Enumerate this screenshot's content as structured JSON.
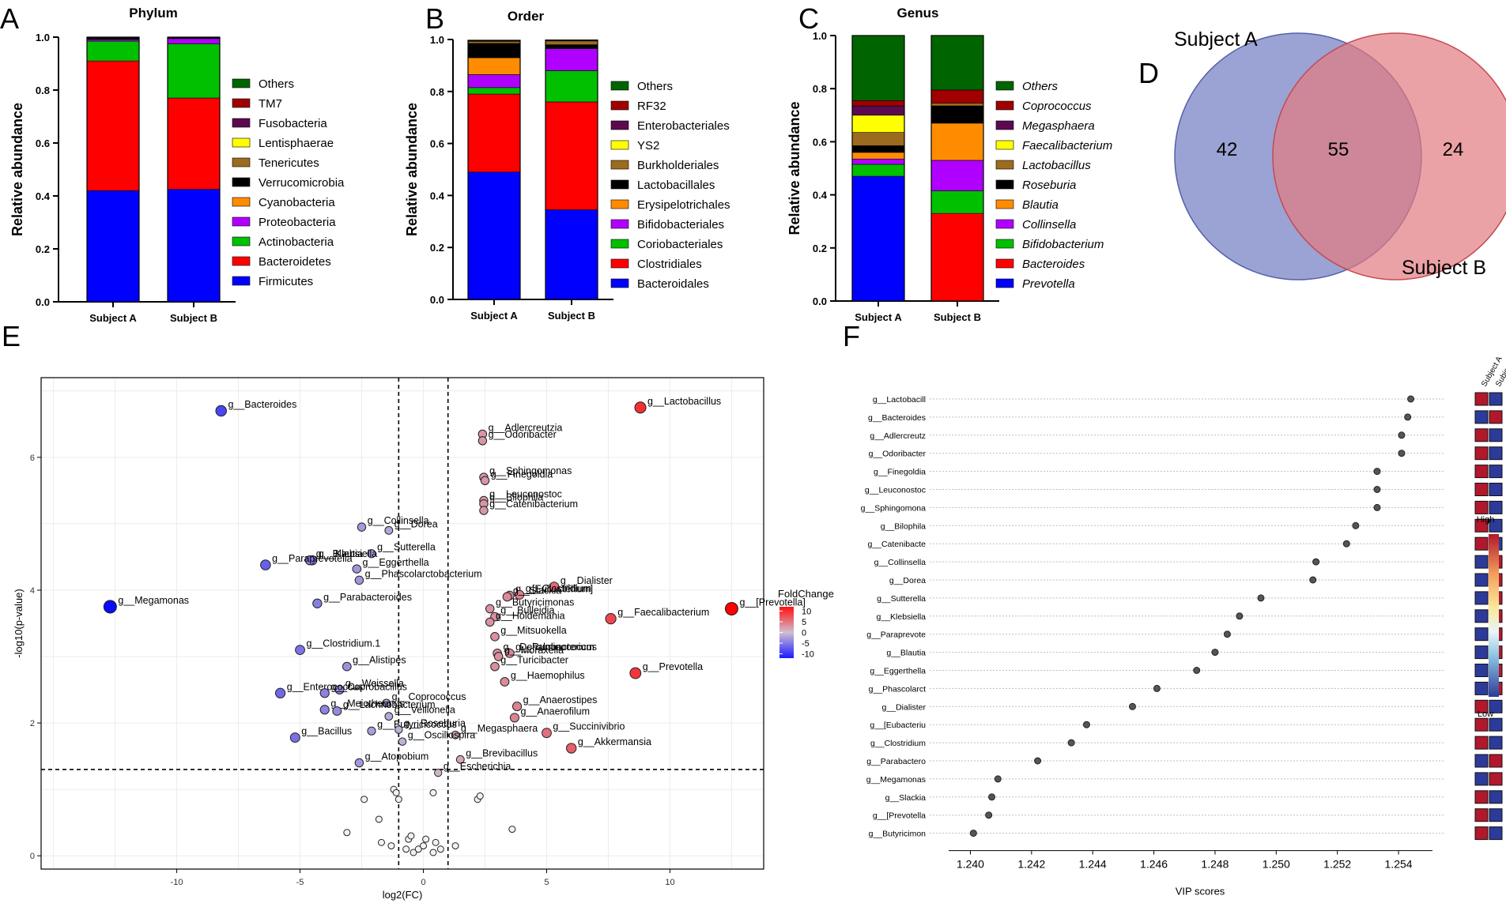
{
  "chart_data": [
    {
      "panel": "A",
      "type": "stacked-bar",
      "title": "Phylum",
      "ylabel": "Relative abundance",
      "ylim": [
        0,
        1.0
      ],
      "yticks": [
        "0.0",
        "0.2",
        "0.4",
        "0.6",
        "0.8",
        "1.0"
      ],
      "categories": [
        "Subject A",
        "Subject B"
      ],
      "series": [
        {
          "name": "Firmicutes",
          "color": "#0000ff",
          "values": [
            0.42,
            0.425
          ]
        },
        {
          "name": "Bacteroidetes",
          "color": "#ff0000",
          "values": [
            0.49,
            0.345
          ]
        },
        {
          "name": "Actinobacteria",
          "color": "#00c000",
          "values": [
            0.075,
            0.205
          ]
        },
        {
          "name": "Proteobacteria",
          "color": "#b000ff",
          "values": [
            0.006,
            0.02
          ]
        },
        {
          "name": "Cyanobacteria",
          "color": "#ff8c00",
          "values": [
            0.002,
            0.001
          ]
        },
        {
          "name": "Verrucomicrobia",
          "color": "#000000",
          "values": [
            0.002,
            0.001
          ]
        },
        {
          "name": "Tenericutes",
          "color": "#9c6b1e",
          "values": [
            0.002,
            0.001
          ]
        },
        {
          "name": "Lentisphaerae",
          "color": "#ffff00",
          "values": [
            0.001,
            0.001
          ]
        },
        {
          "name": "Fusobacteria",
          "color": "#5c0a50",
          "values": [
            0.001,
            0.001
          ]
        },
        {
          "name": "TM7",
          "color": "#a00000",
          "values": [
            0.001,
            0.0
          ]
        },
        {
          "name": "Others",
          "color": "#006400",
          "values": [
            0.0,
            0.0
          ]
        }
      ]
    },
    {
      "panel": "B",
      "type": "stacked-bar",
      "title": "Order",
      "ylabel": "Relative abundance",
      "ylim": [
        0,
        1.0
      ],
      "yticks": [
        "0.0",
        "0.2",
        "0.4",
        "0.6",
        "0.8",
        "1.0"
      ],
      "categories": [
        "Subject A",
        "Subject B"
      ],
      "series": [
        {
          "name": "Bacteroidales",
          "color": "#0000ff",
          "values": [
            0.49,
            0.345
          ]
        },
        {
          "name": "Clostridiales",
          "color": "#ff0000",
          "values": [
            0.3,
            0.415
          ]
        },
        {
          "name": "Coriobacteriales",
          "color": "#00c000",
          "values": [
            0.025,
            0.12
          ]
        },
        {
          "name": "Bifidobacteriales",
          "color": "#b000ff",
          "values": [
            0.05,
            0.085
          ]
        },
        {
          "name": "Erysipelotrichales",
          "color": "#ff8c00",
          "values": [
            0.065,
            0.0
          ]
        },
        {
          "name": "Lactobacillales",
          "color": "#000000",
          "values": [
            0.055,
            0.015
          ]
        },
        {
          "name": "Burkholderiales",
          "color": "#9c6b1e",
          "values": [
            0.008,
            0.015
          ]
        },
        {
          "name": "YS2",
          "color": "#ffff00",
          "values": [
            0.002,
            0.001
          ]
        },
        {
          "name": "Enterobacteriales",
          "color": "#5c0a50",
          "values": [
            0.001,
            0.001
          ]
        },
        {
          "name": "RF32",
          "color": "#a00000",
          "values": [
            0.001,
            0.001
          ]
        },
        {
          "name": "Others",
          "color": "#006400",
          "values": [
            0.0,
            0.0
          ]
        }
      ]
    },
    {
      "panel": "C",
      "type": "stacked-bar",
      "title": "Genus",
      "ylabel": "Relative abundance",
      "ylim": [
        0,
        1.0
      ],
      "yticks": [
        "0.0",
        "0.2",
        "0.4",
        "0.6",
        "0.8",
        "1.0"
      ],
      "categories": [
        "Subject A",
        "Subject B"
      ],
      "italic_legend": true,
      "series": [
        {
          "name": "Prevotella",
          "color": "#0000ff",
          "values": [
            0.47,
            0.0
          ]
        },
        {
          "name": "Bacteroides",
          "color": "#ff0000",
          "values": [
            0.0,
            0.33
          ]
        },
        {
          "name": "Bifidobacterium",
          "color": "#00c000",
          "values": [
            0.045,
            0.085
          ]
        },
        {
          "name": "Collinsella",
          "color": "#b000ff",
          "values": [
            0.02,
            0.115
          ]
        },
        {
          "name": "Blautia",
          "color": "#ff8c00",
          "values": [
            0.025,
            0.14
          ]
        },
        {
          "name": "Roseburia",
          "color": "#000000",
          "values": [
            0.025,
            0.065
          ]
        },
        {
          "name": "Lactobacillus",
          "color": "#9c6b1e",
          "values": [
            0.05,
            0.01
          ]
        },
        {
          "name": "Faecalibacterium",
          "color": "#ffff00",
          "values": [
            0.065,
            0.0
          ]
        },
        {
          "name": "Megasphaera",
          "color": "#5c0a50",
          "values": [
            0.035,
            0.0
          ]
        },
        {
          "name": "Coprococcus",
          "color": "#a00000",
          "values": [
            0.02,
            0.05
          ]
        },
        {
          "name": "Others",
          "color": "#006400",
          "values": [
            0.245,
            0.205
          ]
        }
      ]
    },
    {
      "panel": "D",
      "type": "venn",
      "sets": [
        {
          "name": "Subject A",
          "only": 42,
          "color": "#8a93cc"
        },
        {
          "name": "Subject B",
          "only": 24,
          "color": "#e27b80"
        }
      ],
      "overlap": 55
    },
    {
      "panel": "E",
      "type": "scatter",
      "xlabel": "log2(FC)",
      "ylabel": "-log10(p-value)",
      "xlim": [
        -15.5,
        13.8
      ],
      "ylim": [
        -0.2,
        7.2
      ],
      "xticks": [
        -10,
        -5,
        0,
        5,
        10
      ],
      "yticks": [
        0,
        2,
        4,
        6
      ],
      "vlines": [
        -1,
        1
      ],
      "hline": 1.3,
      "legend": {
        "title": "FoldChange",
        "ticks": [
          "10",
          "5",
          "0",
          "-5",
          "-10"
        ],
        "range": [
          -12,
          12
        ]
      },
      "points": [
        {
          "label": "g__Lactobacillus",
          "x": 8.8,
          "y": 6.75,
          "fc": 9
        },
        {
          "label": "g__Bacteroides",
          "x": -8.2,
          "y": 6.7,
          "fc": -8
        },
        {
          "label": "g__Adlercreutzia",
          "x": 2.4,
          "y": 6.35,
          "fc": 2.5
        },
        {
          "label": "g__Odoribacter",
          "x": 2.4,
          "y": 6.25,
          "fc": 2.5
        },
        {
          "label": "g__Sphingomonas",
          "x": 2.45,
          "y": 5.7,
          "fc": 2.5
        },
        {
          "label": "g__Finegoldia",
          "x": 2.5,
          "y": 5.65,
          "fc": 2.6
        },
        {
          "label": "g__Leuconostoc",
          "x": 2.45,
          "y": 5.35,
          "fc": 2.5
        },
        {
          "label": "g__Bilophila",
          "x": 2.45,
          "y": 5.3,
          "fc": 2.5
        },
        {
          "label": "g__Catenibacterium",
          "x": 2.45,
          "y": 5.2,
          "fc": 2.5
        },
        {
          "label": "g__Collinsella",
          "x": -2.5,
          "y": 4.95,
          "fc": -2.5
        },
        {
          "label": "g__Dorea",
          "x": -1.4,
          "y": 4.9,
          "fc": -1.5
        },
        {
          "label": "g__Sutterella",
          "x": -2.1,
          "y": 4.55,
          "fc": -2.2
        },
        {
          "label": "g__Klebsiella",
          "x": -4.5,
          "y": 4.45,
          "fc": -4.5
        },
        {
          "label": "g__Blautia",
          "x": -4.6,
          "y": 4.45,
          "fc": -4.5
        },
        {
          "label": "g__Paraprevotella",
          "x": -6.4,
          "y": 4.38,
          "fc": -6.3
        },
        {
          "label": "g__Eggerthella",
          "x": -2.7,
          "y": 4.32,
          "fc": -2.7
        },
        {
          "label": "g__Phascolarctobacterium",
          "x": -2.6,
          "y": 4.15,
          "fc": -2.6
        },
        {
          "label": "g__[Eubacterium]",
          "x": 3.5,
          "y": 3.92,
          "fc": 3.5
        },
        {
          "label": "g__Dialister",
          "x": 5.3,
          "y": 4.05,
          "fc": 5.3
        },
        {
          "label": "g__Clostridium",
          "x": 3.9,
          "y": 3.93,
          "fc": 3.9
        },
        {
          "label": "g__Slackia",
          "x": 3.4,
          "y": 3.9,
          "fc": 3.4
        },
        {
          "label": "g__[Prevotella]",
          "x": 12.5,
          "y": 3.72,
          "fc": 12.5
        },
        {
          "label": "g__Megamonas",
          "x": -12.7,
          "y": 3.75,
          "fc": -12.7
        },
        {
          "label": "g__Parabacteroides",
          "x": -4.3,
          "y": 3.8,
          "fc": -4.3
        },
        {
          "label": "g__Butyricimonas",
          "x": 2.7,
          "y": 3.72,
          "fc": 2.7
        },
        {
          "label": "g__Bulleidia",
          "x": 2.9,
          "y": 3.6,
          "fc": 2.9
        },
        {
          "label": "g__Faecalibacterium",
          "x": 7.6,
          "y": 3.57,
          "fc": 7.6
        },
        {
          "label": "g__Holdemania",
          "x": 2.7,
          "y": 3.52,
          "fc": 2.7
        },
        {
          "label": "g__Mitsuokella",
          "x": 2.9,
          "y": 3.3,
          "fc": 2.9
        },
        {
          "label": "g__Clostridium.1",
          "x": -5.0,
          "y": 3.1,
          "fc": -5.0
        },
        {
          "label": "g__Dehalobacterium",
          "x": 3.0,
          "y": 3.05,
          "fc": 3.0
        },
        {
          "label": "g__Ruminococcus",
          "x": 3.5,
          "y": 3.05,
          "fc": 3.5
        },
        {
          "label": "g__Moraxella",
          "x": 3.05,
          "y": 3.0,
          "fc": 3.05
        },
        {
          "label": "g__Turicibacter",
          "x": 2.9,
          "y": 2.85,
          "fc": 2.9
        },
        {
          "label": "g__Alistipes",
          "x": -3.1,
          "y": 2.85,
          "fc": -3.1
        },
        {
          "label": "g__Prevotella",
          "x": 8.6,
          "y": 2.75,
          "fc": 8.6
        },
        {
          "label": "g__Haemophilus",
          "x": 3.3,
          "y": 2.62,
          "fc": 3.3
        },
        {
          "label": "g__Weissella",
          "x": -3.4,
          "y": 2.5,
          "fc": -3.4
        },
        {
          "label": "g__Enterococcus",
          "x": -5.8,
          "y": 2.45,
          "fc": -5.8
        },
        {
          "label": "g__Coprobacillus",
          "x": -4.0,
          "y": 2.45,
          "fc": -4.0
        },
        {
          "label": "g__Coprococcus",
          "x": -1.5,
          "y": 2.3,
          "fc": -1.5
        },
        {
          "label": "g__Anaerostipes",
          "x": 3.8,
          "y": 2.25,
          "fc": 3.8
        },
        {
          "label": "g__Meiothermus",
          "x": -4.0,
          "y": 2.2,
          "fc": -4.0
        },
        {
          "label": "g__Lachnobacterium",
          "x": -3.5,
          "y": 2.18,
          "fc": -3.5
        },
        {
          "label": "g__Veillonella",
          "x": -1.4,
          "y": 2.1,
          "fc": -1.4
        },
        {
          "label": "g__Anaerofilum",
          "x": 3.7,
          "y": 2.08,
          "fc": 3.7
        },
        {
          "label": "g__Butyricicoccus",
          "x": -2.1,
          "y": 1.88,
          "fc": -2.1
        },
        {
          "label": "g__Roseburia",
          "x": -1.0,
          "y": 1.9,
          "fc": -1.0
        },
        {
          "label": "g__Succinivibrio",
          "x": 5.0,
          "y": 1.85,
          "fc": 5.0
        },
        {
          "label": "g__Megasphaera",
          "x": 1.3,
          "y": 1.82,
          "fc": 1.3
        },
        {
          "label": "g__Bacillus",
          "x": -5.2,
          "y": 1.78,
          "fc": -5.2
        },
        {
          "label": "g__Oscillospira",
          "x": -0.85,
          "y": 1.72,
          "fc": -0.85
        },
        {
          "label": "g__Akkermansia",
          "x": 6.0,
          "y": 1.62,
          "fc": 6.0
        },
        {
          "label": "g__Brevibacillus",
          "x": 1.5,
          "y": 1.45,
          "fc": 1.5
        },
        {
          "label": "g__Atopobium",
          "x": -2.6,
          "y": 1.4,
          "fc": -2.6
        },
        {
          "label": "g__Escherichia",
          "x": 0.6,
          "y": 1.25,
          "fc": 0.6
        }
      ],
      "ns_points": [
        {
          "x": -2.4,
          "y": 0.85
        },
        {
          "x": -1.2,
          "y": 1.0
        },
        {
          "x": -1.1,
          "y": 0.95
        },
        {
          "x": -1.0,
          "y": 0.85
        },
        {
          "x": 0.4,
          "y": 0.95
        },
        {
          "x": 2.2,
          "y": 0.85
        },
        {
          "x": 2.3,
          "y": 0.9
        },
        {
          "x": -3.1,
          "y": 0.35
        },
        {
          "x": -1.8,
          "y": 0.55
        },
        {
          "x": -1.7,
          "y": 0.2
        },
        {
          "x": -1.3,
          "y": 0.15
        },
        {
          "x": -0.6,
          "y": 0.25
        },
        {
          "x": -0.5,
          "y": 0.3
        },
        {
          "x": -0.4,
          "y": 0.05
        },
        {
          "x": -0.2,
          "y": 0.1
        },
        {
          "x": 0.0,
          "y": 0.15
        },
        {
          "x": 0.4,
          "y": 0.05
        },
        {
          "x": 0.5,
          "y": 0.2
        },
        {
          "x": 0.7,
          "y": 0.1
        },
        {
          "x": 1.3,
          "y": 0.15
        },
        {
          "x": 3.6,
          "y": 0.4
        },
        {
          "x": -0.7,
          "y": 0.1
        },
        {
          "x": 0.1,
          "y": 0.25
        }
      ]
    },
    {
      "panel": "F",
      "type": "dot-plot",
      "xlabel": "VIP scores",
      "xlim": [
        1.2396,
        1.2548
      ],
      "xticks": [
        "1.240",
        "1.242",
        "1.244",
        "1.246",
        "1.248",
        "1.250",
        "1.252",
        "1.254"
      ],
      "heat_columns": [
        "Subject A",
        "Subject B"
      ],
      "heat_legend": {
        "high": "High",
        "low": "Low"
      },
      "rows": [
        {
          "label": "g__Lactobacill",
          "vip": 1.2544,
          "a": "high"
        },
        {
          "label": "g__Bacteroides",
          "vip": 1.2543,
          "a": "low"
        },
        {
          "label": "g__Adlercreutz",
          "vip": 1.2541,
          "a": "high"
        },
        {
          "label": "g__Odoribacter",
          "vip": 1.2541,
          "a": "high"
        },
        {
          "label": "g__Finegoldia",
          "vip": 1.2533,
          "a": "high"
        },
        {
          "label": "g__Leuconostoc",
          "vip": 1.2533,
          "a": "high"
        },
        {
          "label": "g__Sphingomona",
          "vip": 1.2533,
          "a": "high"
        },
        {
          "label": "g__Bilophila",
          "vip": 1.2526,
          "a": "high"
        },
        {
          "label": "g__Catenibacte",
          "vip": 1.2523,
          "a": "high"
        },
        {
          "label": "g__Collinsella",
          "vip": 1.2513,
          "a": "low"
        },
        {
          "label": "g__Dorea",
          "vip": 1.2512,
          "a": "low"
        },
        {
          "label": "g__Sutterella",
          "vip": 1.2495,
          "a": "low"
        },
        {
          "label": "g__Klebsiella",
          "vip": 1.2488,
          "a": "low"
        },
        {
          "label": "g__Paraprevote",
          "vip": 1.2484,
          "a": "low"
        },
        {
          "label": "g__Blautia",
          "vip": 1.248,
          "a": "low"
        },
        {
          "label": "g__Eggerthella",
          "vip": 1.2474,
          "a": "low"
        },
        {
          "label": "g__Phascolarct",
          "vip": 1.2461,
          "a": "low"
        },
        {
          "label": "g__Dialister",
          "vip": 1.2453,
          "a": "high"
        },
        {
          "label": "g__[Eubacteriu",
          "vip": 1.2438,
          "a": "high"
        },
        {
          "label": "g__Clostridium",
          "vip": 1.2433,
          "a": "high"
        },
        {
          "label": "g__Parabactero",
          "vip": 1.2422,
          "a": "low"
        },
        {
          "label": "g__Megamonas",
          "vip": 1.2409,
          "a": "low"
        },
        {
          "label": "g__Slackia",
          "vip": 1.2407,
          "a": "high"
        },
        {
          "label": "g__[Prevotella",
          "vip": 1.2406,
          "a": "high"
        },
        {
          "label": "g__Butyricimon",
          "vip": 1.2401,
          "a": "high"
        }
      ]
    }
  ],
  "panel_letters": [
    "A",
    "B",
    "C",
    "D",
    "E",
    "F"
  ],
  "colors": {
    "high": "#b2182b",
    "low": "#2c3b9a",
    "dot": "#555555"
  }
}
